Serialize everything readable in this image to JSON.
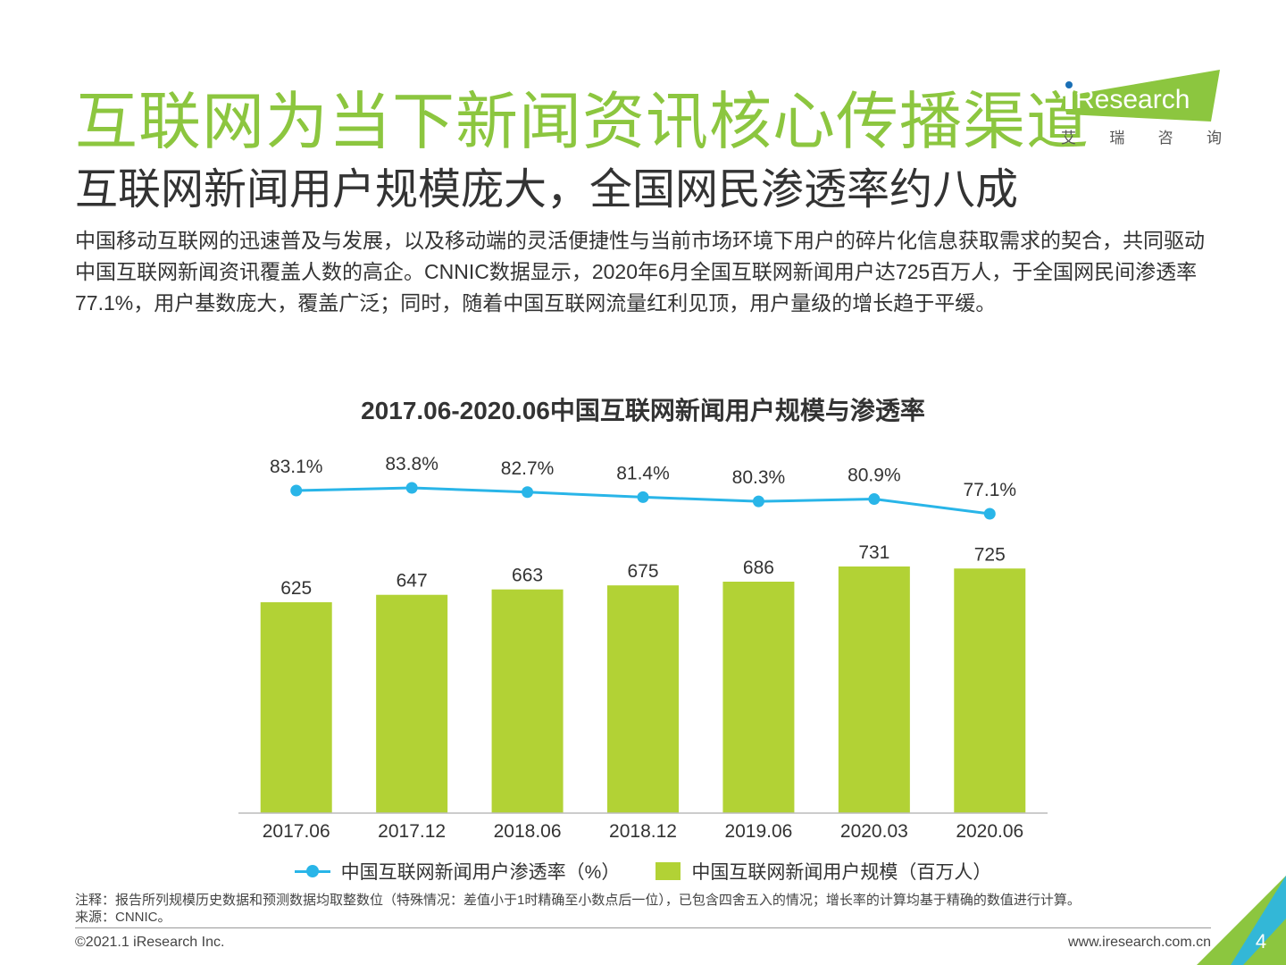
{
  "header": {
    "title": "互联网为当下新闻资讯核心传播渠道",
    "subtitle": "互联网新闻用户规模庞大，全国网民渗透率约八成",
    "logo_text": "Research",
    "logo_cn": [
      "艾",
      "瑞",
      "咨",
      "询"
    ]
  },
  "intro": {
    "text": "中国移动互联网的迅速普及与发展，以及移动端的灵活便捷性与当前市场环境下用户的碎片化信息获取需求的契合，共同驱动中国互联网新闻资讯覆盖人数的高企。CNNIC数据显示，2020年6月全国互联网新闻用户达725百万人，于全国网民间渗透率77.1%，用户基数庞大，覆盖广泛；同时，随着中国互联网流量红利见顶，用户量级的增长趋于平缓。"
  },
  "chart_data": {
    "type": "bar",
    "title": "2017.06-2020.06中国互联网新闻用户规模与渗透率",
    "categories": [
      "2017.06",
      "2017.12",
      "2018.06",
      "2018.12",
      "2019.06",
      "2020.03",
      "2020.06"
    ],
    "series": [
      {
        "name": "中国互联网新闻用户规模（百万人）",
        "type": "bar",
        "color": "#b2d235",
        "values": [
          625,
          647,
          663,
          675,
          686,
          731,
          725
        ]
      },
      {
        "name": "中国互联网新闻用户渗透率（%）",
        "type": "line",
        "color": "#29b5e8",
        "values": [
          83.1,
          83.8,
          82.7,
          81.4,
          80.3,
          80.9,
          77.1
        ],
        "labels": [
          "83.1%",
          "83.8%",
          "82.7%",
          "81.4%",
          "80.3%",
          "80.9%",
          "77.1%"
        ]
      }
    ],
    "ylim_bar": [
      0,
      731
    ],
    "ylim_line": [
      77.1,
      83.8
    ],
    "grid": false,
    "legend_position": "bottom"
  },
  "footer": {
    "note": "注释：报告所列规模历史数据和预测数据均取整数位（特殊情况：差值小于1时精确至小数点后一位），已包含四舍五入的情况；增长率的计算均基于精确的数值进行计算。",
    "source": "来源：CNNIC。",
    "copyright": "©2021.1 iResearch Inc.",
    "website": "www.iresearch.com.cn",
    "page_number": "4"
  },
  "colors": {
    "title_green": "#8cc63f",
    "bar_green": "#b2d235",
    "line_blue": "#29b5e8"
  }
}
